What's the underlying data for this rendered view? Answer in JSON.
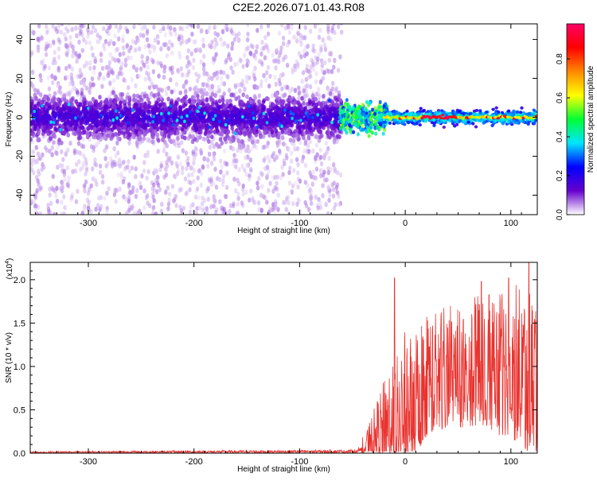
{
  "figure": {
    "title": "C2E2.2026.071.01.43.R08"
  },
  "chart_data": [
    {
      "type": "heatmap",
      "title": "C2E2.2026.071.01.43.R08",
      "xlabel": "Height of straight line (km)",
      "ylabel": "Frequency (Hz)",
      "xlim": [
        -355,
        125
      ],
      "ylim": [
        -50,
        48
      ],
      "x_ticks": [
        -300,
        -200,
        -100,
        0,
        100
      ],
      "y_ticks": [
        -40,
        -20,
        0,
        20,
        40
      ],
      "x_tick_labels": [
        "-300",
        "-200",
        "-100",
        "0",
        "100"
      ],
      "y_tick_labels": [
        "-40",
        "-20",
        "0",
        "20",
        "40"
      ],
      "colorbar": {
        "label": "Normalized spectral amplitude",
        "range": [
          0.0,
          0.98
        ],
        "ticks": [
          0.0,
          0.2,
          0.4,
          0.6,
          0.8
        ],
        "tick_labels": [
          "0.0",
          "0.2",
          "0.4",
          "0.6",
          "0.8"
        ],
        "colormap": [
          "#ffffff",
          "#6600cc",
          "#0000ff",
          "#00e5ff",
          "#00ff33",
          "#ffff00",
          "#ff8800",
          "#ff0000",
          "#ff0066"
        ]
      },
      "regions": [
        {
          "x_range": [
            -355,
            -60
          ],
          "freq_center": 0,
          "core_halfwidth": 10,
          "halo_halfwidth": 50,
          "level": "low (0.05-0.25)"
        },
        {
          "x_range": [
            -60,
            125
          ],
          "freq_center": 0,
          "core_halfwidth": 4,
          "level": "high (0.4-0.98)"
        }
      ]
    },
    {
      "type": "line",
      "xlabel": "Height of straight line (km)",
      "ylabel": "SNR (10 * v/v)",
      "y_multiplier_label": "(x10",
      "y_multiplier_exp": "4",
      "y_multiplier_close": ")",
      "xlim": [
        -355,
        125
      ],
      "ylim": [
        0.0,
        2.2
      ],
      "x_ticks": [
        -300,
        -200,
        -100,
        0,
        100
      ],
      "y_ticks": [
        0.0,
        0.5,
        1.0,
        1.5,
        2.0
      ],
      "x_tick_labels": [
        "-300",
        "-200",
        "-100",
        "0",
        "100"
      ],
      "y_tick_labels": [
        "0.0",
        "0.5",
        "1.0",
        "1.5",
        "2.0"
      ],
      "series_color": "#e8332f",
      "envelope": {
        "x": [
          -355,
          -45,
          -40,
          -30,
          -20,
          -10,
          0,
          10,
          20,
          40,
          60,
          80,
          100,
          110,
          120,
          125
        ],
        "y_mean": [
          0.01,
          0.02,
          0.08,
          0.2,
          0.35,
          0.5,
          0.62,
          0.75,
          0.9,
          1.0,
          1.05,
          1.05,
          1.05,
          1.0,
          0.95,
          0.9
        ],
        "y_spread": [
          0.01,
          0.02,
          0.12,
          0.3,
          0.5,
          0.7,
          0.8,
          0.75,
          0.75,
          0.7,
          0.75,
          0.8,
          0.9,
          0.95,
          1.0,
          1.0
        ]
      },
      "peaks": [
        {
          "x": -10,
          "y": 2.02
        },
        {
          "x": 72,
          "y": 1.98
        },
        {
          "x": 98,
          "y": 2.02
        },
        {
          "x": 117,
          "y": 2.2
        }
      ]
    }
  ]
}
